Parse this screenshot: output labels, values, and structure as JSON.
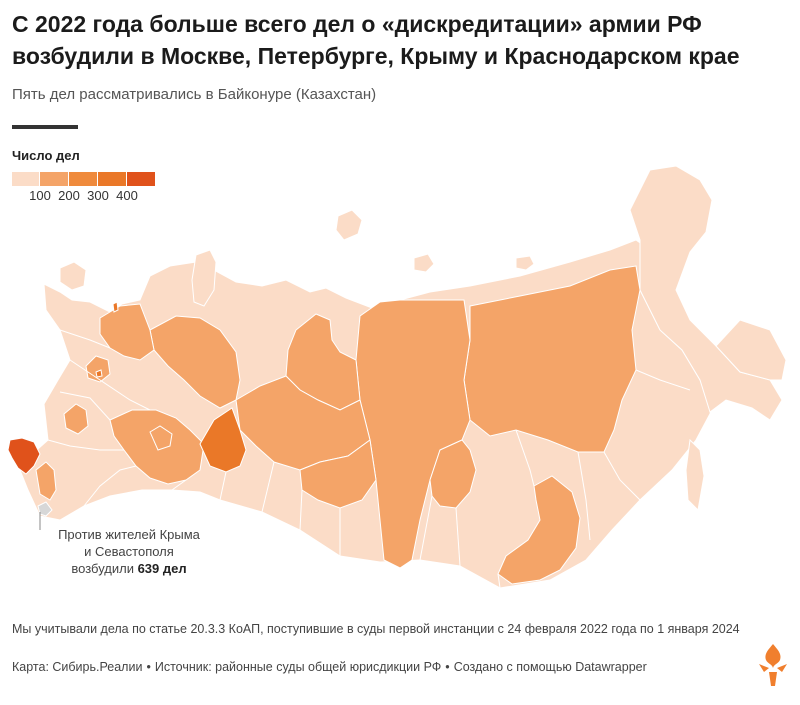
{
  "header": {
    "title": "С 2022 года больше всего дел о «дискредитации» армии РФ возбудили в Москве, Петербурге, Крыму и Краснодарском крае",
    "subtitle": "Пять дел рассматривались в Байконуре (Казахстан)"
  },
  "legend": {
    "title": "Число дел",
    "ticks": [
      "100",
      "200",
      "300",
      "400"
    ],
    "colors": [
      "#fbdcc7",
      "#f4a468",
      "#ef8a3c",
      "#ea7828",
      "#e0521b"
    ]
  },
  "annotation": {
    "line1": "Против жителей Крыма",
    "line2": "и Севастополя",
    "line3_prefix": "возбудили ",
    "line3_bold": "639 дел"
  },
  "note": "Мы учитывали дела по статье 20.3.3 КоАП, поступившие в суды первой инстанции с 24 февраля 2022 года по 1 января 2024",
  "footer": {
    "map": "Карта: Сибирь.Реалии",
    "source": "Источник: районные суды общей юрисдикции РФ",
    "created": "Создано с помощью Datawrapper"
  },
  "colors": {
    "pale": "#fbdcc7",
    "light": "#f4a468",
    "mid": "#ef8a3c",
    "strong": "#ea7828",
    "darkest": "#e0521b",
    "border": "#ffffff",
    "no_data": "#d7d7d7",
    "logo": "#f07f2e"
  }
}
